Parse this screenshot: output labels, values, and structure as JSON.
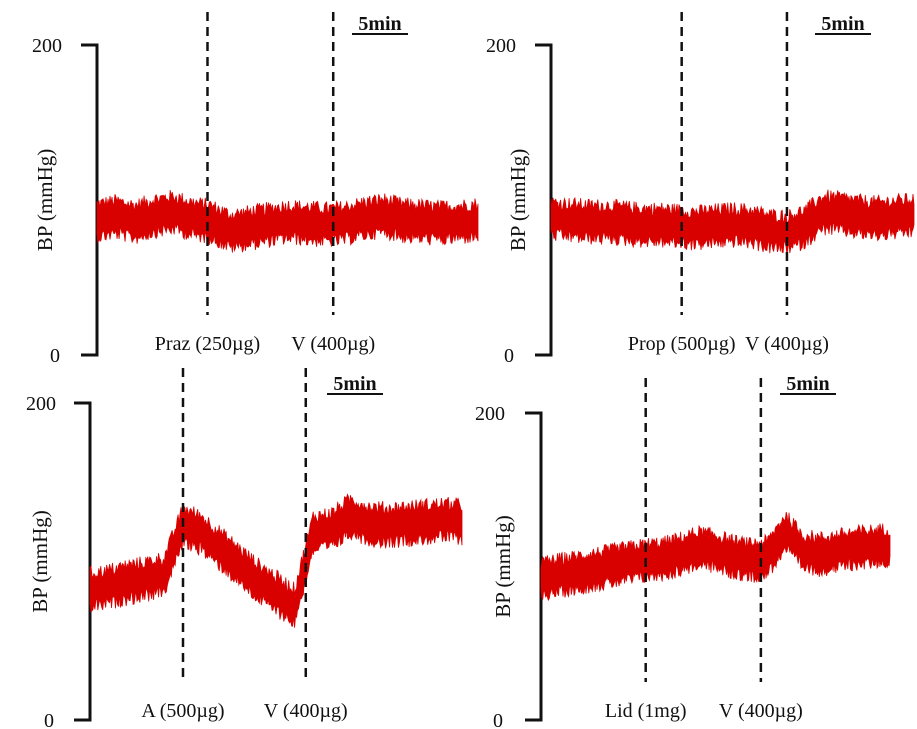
{
  "chart_data": [
    {
      "type": "line",
      "ylabel": "BP (mmHg)",
      "ylim": [
        0,
        200
      ],
      "y_ticks": [
        "0",
        "200"
      ],
      "scale_bar": "5min",
      "x": [
        0,
        5,
        10,
        15,
        20,
        25,
        30,
        35,
        40,
        45,
        50,
        55,
        60,
        65,
        70,
        75,
        80,
        85,
        90,
        95,
        100
      ],
      "series": [
        {
          "values": [
            87,
            89,
            86,
            90,
            92,
            88,
            86,
            80,
            82,
            84,
            86,
            85,
            84,
            85,
            88,
            90,
            87,
            86,
            85,
            86,
            87
          ],
          "color": "#d90000"
        }
      ],
      "events": [
        {
          "label": "Praz (250µg)",
          "x": 29
        },
        {
          "label": "V (400µg)",
          "x": 62
        }
      ]
    },
    {
      "type": "line",
      "ylabel": "BP (mmHg)",
      "ylim": [
        0,
        200
      ],
      "y_ticks": [
        "0",
        "200"
      ],
      "scale_bar": "5min",
      "x": [
        0,
        5,
        10,
        15,
        20,
        25,
        30,
        35,
        40,
        45,
        50,
        55,
        60,
        65,
        70,
        75,
        80,
        85,
        90,
        95,
        100
      ],
      "series": [
        {
          "values": [
            88,
            87,
            86,
            86,
            85,
            84,
            84,
            83,
            82,
            83,
            84,
            83,
            80,
            79,
            83,
            92,
            91,
            89,
            88,
            89,
            90
          ],
          "color": "#d90000"
        }
      ],
      "events": [
        {
          "label": "Prop (500µg)",
          "x": 36
        },
        {
          "label": "V (400µg)",
          "x": 65
        }
      ]
    },
    {
      "type": "line",
      "ylabel": "BP (mmHg)",
      "ylim": [
        0,
        200
      ],
      "y_ticks": [
        "0",
        "200"
      ],
      "scale_bar": "5min",
      "x": [
        0,
        5,
        10,
        15,
        20,
        25,
        30,
        35,
        40,
        45,
        50,
        55,
        60,
        65,
        70,
        75,
        80,
        85,
        90,
        95,
        100
      ],
      "series": [
        {
          "values": [
            82,
            84,
            87,
            89,
            92,
            123,
            118,
            108,
            98,
            88,
            80,
            72,
            118,
            120,
            129,
            124,
            123,
            124,
            125,
            126,
            125
          ],
          "color": "#d90000"
        }
      ],
      "events": [
        {
          "label": "A (500µg)",
          "x": 25
        },
        {
          "label": "V (400µg)",
          "x": 58
        }
      ]
    },
    {
      "type": "line",
      "ylabel": "BP (mmHg)",
      "ylim": [
        0,
        200
      ],
      "y_ticks": [
        "0",
        "200"
      ],
      "scale_bar": "5min",
      "x": [
        0,
        5,
        10,
        15,
        20,
        25,
        30,
        35,
        40,
        45,
        50,
        55,
        60,
        65,
        70,
        75,
        80,
        85,
        90,
        95,
        100
      ],
      "series": [
        {
          "values": [
            92,
            94,
            96,
            98,
            100,
            102,
            104,
            105,
            108,
            112,
            110,
            106,
            104,
            106,
            123,
            110,
            108,
            110,
            112,
            113,
            114
          ],
          "color": "#d90000"
        }
      ],
      "events": [
        {
          "label": "Lid (1mg)",
          "x": 30
        },
        {
          "label": "V (400µg)",
          "x": 63
        }
      ]
    }
  ]
}
